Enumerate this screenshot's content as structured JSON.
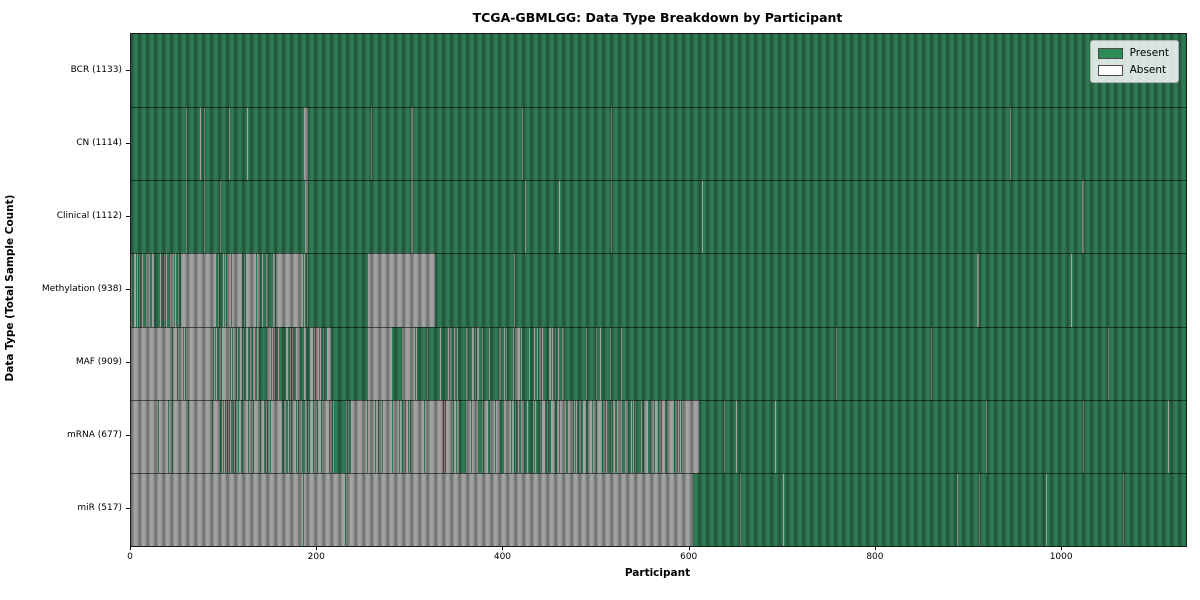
{
  "title": "TCGA-GBMLGG: Data Type Breakdown by Participant",
  "xlabel": "Participant",
  "ylabel": "Data Type (Total Sample Count)",
  "legend": {
    "present_label": "Present",
    "absent_label": "Absent",
    "present_color": "#2e8b57",
    "absent_color": "#ffffff"
  },
  "colors": {
    "present_fill": "#317a55",
    "absent_fill": "#a2a5a2",
    "plot_border": "#1a1a1a"
  },
  "chart_data": {
    "type": "heatmap",
    "title": "TCGA-GBMLGG: Data Type Breakdown by Participant",
    "xlabel": "Participant",
    "ylabel": "Data Type (Total Sample Count)",
    "x_range": [
      0,
      1133
    ],
    "x_ticks": [
      0,
      200,
      400,
      600,
      800,
      1000
    ],
    "legend_entries": [
      "Present",
      "Absent"
    ],
    "legend_position": "upper right",
    "note": "segments are [start_participant, end_participant, fraction_present]; fraction 1 = solid present (green), 0 = solid absent (white/gray), intermediate = interleaved thin stripes; stripes arrays are narrow overrides",
    "rows": [
      {
        "label": "BCR (1133)",
        "name": "BCR",
        "total_samples": 1133,
        "segments": [
          [
            0,
            1133,
            1
          ]
        ]
      },
      {
        "label": "CN (1114)",
        "name": "CN",
        "total_samples": 1114,
        "segments": [
          [
            0,
            1133,
            1
          ]
        ],
        "absent_stripes": [
          [
            59,
            60
          ],
          [
            74,
            75
          ],
          [
            78,
            79
          ],
          [
            105,
            106
          ],
          [
            125,
            126
          ],
          [
            186,
            190
          ],
          [
            258,
            259
          ],
          [
            301,
            303
          ],
          [
            420,
            421
          ],
          [
            516,
            517
          ],
          [
            944,
            945
          ]
        ]
      },
      {
        "label": "Clinical (1112)",
        "name": "Clinical",
        "total_samples": 1112,
        "segments": [
          [
            0,
            1133,
            1
          ]
        ],
        "absent_stripes": [
          [
            59,
            60
          ],
          [
            78,
            79
          ],
          [
            96,
            97
          ],
          [
            187,
            190
          ],
          [
            301,
            303
          ],
          [
            423,
            424
          ],
          [
            460,
            461
          ],
          [
            516,
            517
          ],
          [
            613,
            614
          ],
          [
            1021,
            1023
          ]
        ]
      },
      {
        "label": "Methylation (938)",
        "name": "Methylation",
        "total_samples": 938,
        "segments": [
          [
            0,
            54,
            0.5
          ],
          [
            54,
            89,
            0
          ],
          [
            89,
            101,
            0.7
          ],
          [
            101,
            123,
            0.45
          ],
          [
            123,
            134,
            0
          ],
          [
            134,
            152,
            0.5
          ],
          [
            152,
            184,
            0.12
          ],
          [
            184,
            195,
            0.5
          ],
          [
            195,
            255,
            1
          ],
          [
            255,
            327,
            0
          ],
          [
            327,
            1133,
            1
          ]
        ],
        "absent_stripes": [
          [
            411,
            412
          ],
          [
            909,
            911
          ],
          [
            1010,
            1011
          ]
        ]
      },
      {
        "label": "MAF (909)",
        "name": "MAF",
        "total_samples": 909,
        "segments": [
          [
            0,
            86,
            0.05
          ],
          [
            86,
            160,
            0.5
          ],
          [
            160,
            195,
            0.65
          ],
          [
            195,
            216,
            0.4
          ],
          [
            216,
            255,
            1
          ],
          [
            255,
            280,
            0
          ],
          [
            280,
            291,
            1
          ],
          [
            291,
            305,
            0
          ],
          [
            305,
            338,
            0.85
          ],
          [
            338,
            460,
            0.75
          ],
          [
            460,
            545,
            0.9
          ],
          [
            545,
            1133,
            1
          ]
        ],
        "absent_stripes": [
          [
            757,
            758
          ],
          [
            859,
            860
          ],
          [
            1049,
            1050
          ]
        ]
      },
      {
        "label": "mRNA (677)",
        "name": "mRNA",
        "total_samples": 677,
        "segments": [
          [
            0,
            96,
            0.04
          ],
          [
            96,
            120,
            0.5
          ],
          [
            120,
            159,
            0.2
          ],
          [
            159,
            195,
            0.45
          ],
          [
            195,
            216,
            0.15
          ],
          [
            216,
            237,
            0.8
          ],
          [
            237,
            349,
            0.15
          ],
          [
            349,
            575,
            0.45
          ],
          [
            575,
            592,
            0.3
          ],
          [
            592,
            610,
            0
          ],
          [
            610,
            1133,
            1
          ]
        ],
        "absent_stripes": [
          [
            637,
            638
          ],
          [
            650,
            651
          ],
          [
            692,
            693
          ],
          [
            918,
            919
          ],
          [
            1022,
            1023
          ],
          [
            1114,
            1115
          ]
        ]
      },
      {
        "label": "miR (517)",
        "name": "miR",
        "total_samples": 517,
        "segments": [
          [
            0,
            604,
            0
          ],
          [
            604,
            1133,
            1
          ]
        ],
        "present_stripes": [
          [
            185,
            186
          ],
          [
            230,
            231
          ]
        ],
        "absent_stripes": [
          [
            654,
            655
          ],
          [
            700,
            701
          ],
          [
            887,
            888
          ],
          [
            911,
            912
          ],
          [
            965,
            966
          ],
          [
            983,
            984
          ],
          [
            1065,
            1066
          ]
        ]
      }
    ]
  }
}
